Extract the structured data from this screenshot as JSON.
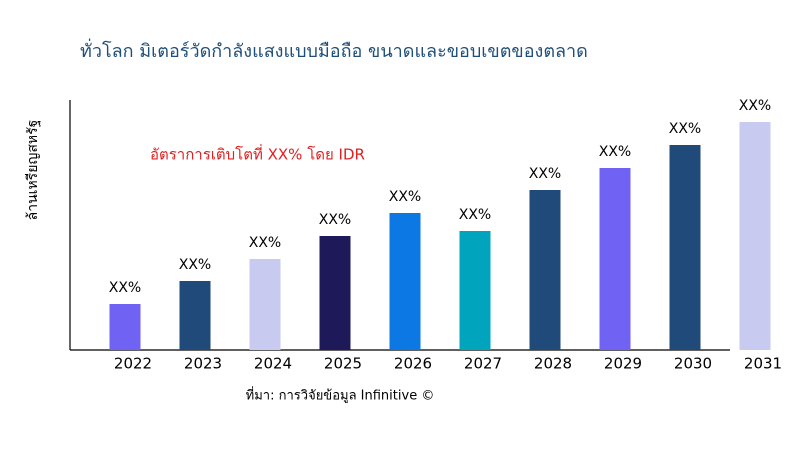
{
  "chart_data": {
    "type": "bar",
    "title": "ทั่วโลก มิเตอร์วัดกำลังแสงแบบมือถือ ขนาดและขอบเขตของตลาด",
    "y_label": "ล้านเหรียญสหรัฐ",
    "annotation": "อัตราการเติบโตที่ XX% โดย IDR",
    "source": "ที่มา: การวิจัยข้อมูล Infinitive ©",
    "categories": [
      "2022",
      "2023",
      "2024",
      "2025",
      "2026",
      "2027",
      "2028",
      "2029",
      "2030",
      "2031"
    ],
    "values": [
      46,
      69,
      91,
      114,
      137,
      119,
      160,
      182,
      205,
      228
    ],
    "value_labels": [
      "XX%",
      "XX%",
      "XX%",
      "XX%",
      "XX%",
      "XX%",
      "XX%",
      "XX%",
      "XX%",
      "XX%"
    ],
    "colors": [
      "#7063f3",
      "#1f4a7a",
      "#c8caf0",
      "#1e1a5a",
      "#0b78e3",
      "#00a4bd",
      "#1f4a7a",
      "#7063f3",
      "#1f4a7a",
      "#c8caf0"
    ],
    "ylim": [
      0,
      250
    ]
  }
}
